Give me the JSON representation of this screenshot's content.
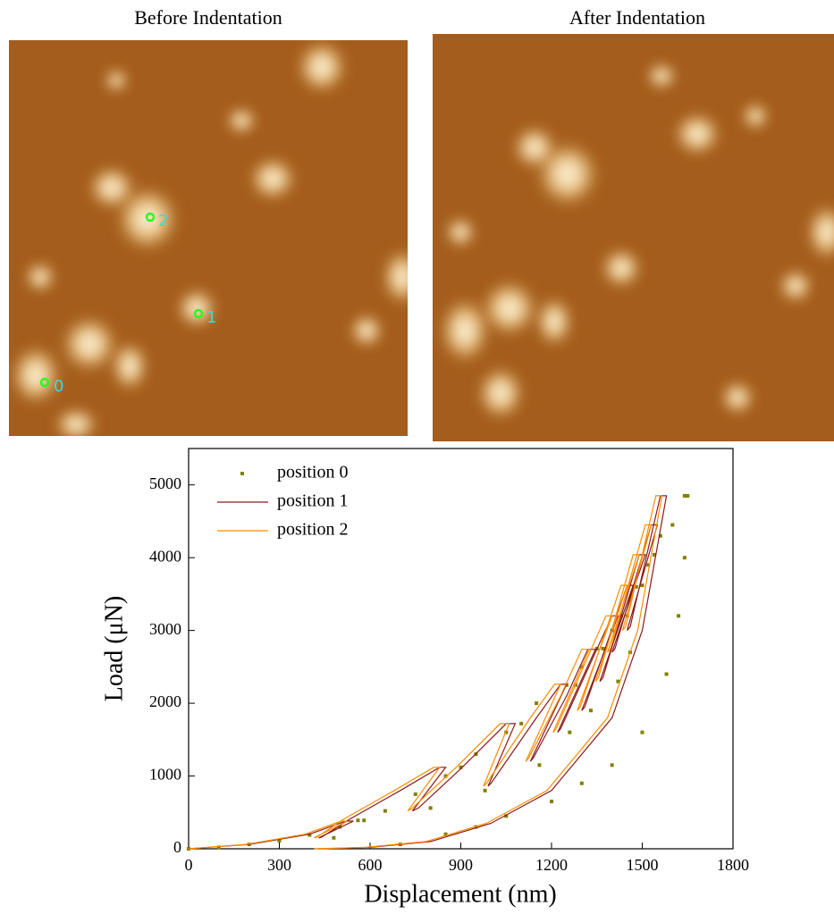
{
  "images": [
    {
      "title": "Before Indentation",
      "markers": [
        {
          "label": "0"
        },
        {
          "label": "1"
        },
        {
          "label": "2"
        }
      ]
    },
    {
      "title": "After Indentation"
    }
  ],
  "chart_data": {
    "type": "line",
    "x_label": "Displacement (nm)",
    "y_label": "Load (μN)",
    "xlim": [
      0,
      1800
    ],
    "xticks": [
      0,
      300,
      600,
      900,
      1200,
      1500,
      1800
    ],
    "ylim": [
      0,
      5500
    ],
    "yticks": [
      0,
      1000,
      2000,
      3000,
      4000,
      5000
    ],
    "legend": "upper-left",
    "series": [
      {
        "name": "position 0",
        "color": "#808000",
        "style": "markers",
        "x": [
          0,
          100,
          200,
          300,
          400,
          500,
          560,
          580,
          480,
          650,
          750,
          850,
          900,
          800,
          950,
          1050,
          1100,
          980,
          1150,
          1250,
          1280,
          1160,
          1300,
          1350,
          1370,
          1260,
          1400,
          1430,
          1450,
          1330,
          1480,
          1500,
          1420,
          1520,
          1540,
          1460,
          1560,
          1600,
          1640,
          1650,
          1640,
          1620,
          1580,
          1500,
          1400,
          1300,
          1200,
          1050,
          950,
          850,
          700
        ],
        "values": [
          0,
          20,
          60,
          110,
          190,
          300,
          390,
          390,
          150,
          520,
          750,
          1000,
          1120,
          560,
          1300,
          1600,
          1720,
          800,
          2000,
          2250,
          2250,
          1150,
          2500,
          2750,
          2750,
          1600,
          3000,
          3200,
          3200,
          1900,
          3600,
          3620,
          2300,
          3900,
          4040,
          2700,
          4300,
          4450,
          4850,
          4850,
          4000,
          3200,
          2400,
          1600,
          1150,
          900,
          650,
          450,
          300,
          200,
          60
        ]
      },
      {
        "name": "position 1",
        "color": "#8b1a1a",
        "style": "line",
        "x": [
          0,
          200,
          400,
          520,
          545,
          430,
          440,
          530,
          700,
          830,
          850,
          740,
          760,
          900,
          1050,
          1080,
          990,
          1000,
          1150,
          1230,
          1250,
          1130,
          1140,
          1250,
          1320,
          1345,
          1220,
          1230,
          1400,
          1420,
          1300,
          1310,
          1450,
          1470,
          1360,
          1370,
          1490,
          1510,
          1400,
          1410,
          1530,
          1550,
          1450,
          1460,
          1560,
          1580,
          1500,
          1400,
          1200,
          1000,
          800,
          600,
          430
        ],
        "values": [
          0,
          60,
          200,
          380,
          380,
          150,
          160,
          400,
          800,
          1120,
          1120,
          520,
          560,
          1100,
          1720,
          1720,
          860,
          900,
          1800,
          2260,
          2260,
          1200,
          1250,
          2100,
          2740,
          2740,
          1600,
          1650,
          3200,
          3200,
          1900,
          1950,
          3620,
          3620,
          2300,
          2350,
          4040,
          4040,
          2700,
          2750,
          4450,
          4450,
          3000,
          3050,
          4850,
          4850,
          3000,
          1800,
          800,
          350,
          100,
          20,
          0
        ]
      },
      {
        "name": "position 2",
        "color": "#ff8c00",
        "style": "line",
        "x": [
          0,
          190,
          385,
          505,
          525,
          415,
          425,
          510,
          680,
          810,
          830,
          725,
          740,
          880,
          1030,
          1060,
          975,
          985,
          1130,
          1210,
          1230,
          1115,
          1125,
          1230,
          1300,
          1325,
          1205,
          1215,
          1380,
          1400,
          1285,
          1295,
          1430,
          1450,
          1345,
          1355,
          1470,
          1490,
          1385,
          1395,
          1510,
          1530,
          1435,
          1445,
          1545,
          1565,
          1485,
          1385,
          1185,
          985,
          785,
          585,
          415
        ],
        "values": [
          0,
          60,
          200,
          380,
          380,
          150,
          160,
          400,
          800,
          1120,
          1120,
          520,
          560,
          1100,
          1720,
          1720,
          860,
          900,
          1800,
          2260,
          2260,
          1200,
          1250,
          2100,
          2740,
          2740,
          1600,
          1650,
          3200,
          3200,
          1900,
          1950,
          3620,
          3620,
          2300,
          2350,
          4040,
          4040,
          2700,
          2750,
          4450,
          4450,
          3000,
          3050,
          4850,
          4850,
          3000,
          1800,
          800,
          350,
          100,
          20,
          0
        ]
      }
    ]
  }
}
